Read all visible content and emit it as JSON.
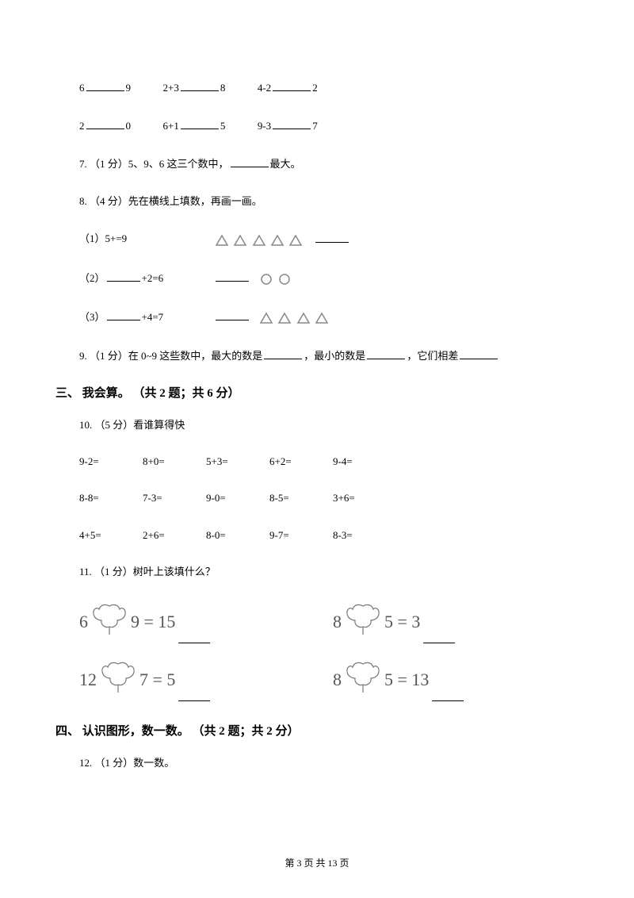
{
  "q_compare": {
    "row1": [
      {
        "l": "6",
        "r": "9"
      },
      {
        "l": "2+3",
        "r": "8"
      },
      {
        "l": "4-2",
        "r": "2"
      }
    ],
    "row2": [
      {
        "l": "2",
        "r": "0"
      },
      {
        "l": "6+1",
        "r": "5"
      },
      {
        "l": "9-3",
        "r": "7"
      }
    ]
  },
  "q7": {
    "prefix": "7.  （1 分）5、9、6 这三个数中，",
    "suffix": "最大。"
  },
  "q8": {
    "title": "8.  （4 分）先在横线上填数，再画一画。",
    "items": [
      {
        "label": "（1）5+",
        "suffix": "=9",
        "shapes": "tri",
        "count": 5,
        "trailing_blank": true,
        "leading_blank": false
      },
      {
        "label": "（2）",
        "suffix": "+2=6",
        "shapes": "circ",
        "count": 2,
        "trailing_blank": false,
        "leading_blank": true
      },
      {
        "label": "（3）",
        "suffix": "+4=7",
        "shapes": "tri",
        "count": 4,
        "trailing_blank": false,
        "leading_blank": true
      }
    ]
  },
  "q9": {
    "text": "9.  （1 分）在 0~9 这些数中，最大的数是",
    "mid": "，最小的数是",
    "end": "，它们相差"
  },
  "section3": {
    "title": "三、 我会算。 （共 2 题；共 6 分）"
  },
  "q10": {
    "title": "10.  （5 分）看谁算得快",
    "rows": [
      [
        "9-2=",
        "8+0=",
        "5+3=",
        "6+2=",
        "9-4="
      ],
      [
        "8-8=",
        "7-3=",
        "9-0=",
        "8-5=",
        "3+6="
      ],
      [
        "4+5=",
        "2+6=",
        "8-0=",
        "9-7=",
        "8-3="
      ]
    ]
  },
  "q11": {
    "title": "11.  （1 分）树叶上该填什么？",
    "items": [
      {
        "a": "6",
        "b": "9",
        "c": "= 15"
      },
      {
        "a": "8",
        "b": "5",
        "c": "= 3"
      },
      {
        "a": "12",
        "b": "7",
        "c": "= 5"
      },
      {
        "a": "8",
        "b": "5",
        "c": "= 13"
      }
    ]
  },
  "section4": {
    "title": "四、 认识图形，数一数。 （共 2 题；共 2 分）"
  },
  "q12": {
    "title": "12.  （1 分）数一数。"
  },
  "footer": {
    "text": "第 3 页 共 13 页"
  },
  "styling": {
    "page_bg": "#ffffff",
    "text_color": "#000000",
    "shape_stroke": "#888888",
    "leaf_stroke": "#777777",
    "body_fontsize": 13,
    "section_fontsize": 15,
    "leaf_fontsize": 22
  }
}
